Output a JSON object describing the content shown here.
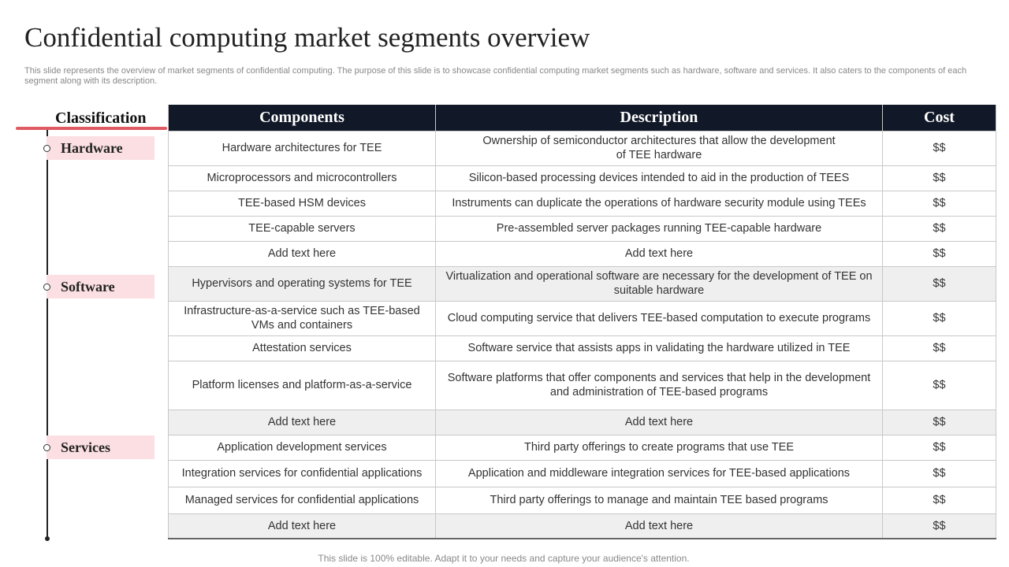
{
  "title": "Confidential computing market segments overview",
  "subtitle": "This slide represents the overview of market segments of confidential computing. The purpose of this slide is to showcase confidential computing market segments such as hardware, software and services. It also caters to the components of each segment along with its description.",
  "classification_header": "Classification",
  "categories": [
    {
      "label": "Hardware"
    },
    {
      "label": "Software"
    },
    {
      "label": "Services"
    }
  ],
  "table": {
    "headers": [
      "Components",
      "Description",
      "Cost"
    ],
    "rows": [
      {
        "component": "Hardware architectures for TEE",
        "description": "Ownership of semiconductor architectures that allow the development\nof TEE hardware",
        "cost": "$$"
      },
      {
        "component": "Microprocessors and microcontrollers",
        "description": "Silicon-based processing devices intended to aid in the production of TEES",
        "cost": "$$"
      },
      {
        "component": "TEE-based HSM devices",
        "description": "Instruments can duplicate the operations of hardware security module using TEEs",
        "cost": "$$"
      },
      {
        "component": "TEE-capable servers",
        "description": "Pre-assembled server packages running TEE-capable hardware",
        "cost": "$$"
      },
      {
        "component": "Add text here",
        "description": "Add text here",
        "cost": "$$"
      },
      {
        "component": "Hypervisors and operating systems for TEE",
        "description": "Virtualization and operational software are necessary for the development of TEE on suitable hardware",
        "cost": "$$"
      },
      {
        "component": "Infrastructure-as-a-service such as TEE-based VMs and containers",
        "description": "Cloud computing service that delivers TEE-based computation to execute programs",
        "cost": "$$"
      },
      {
        "component": "Attestation services",
        "description": "Software service that assists apps in validating the hardware utilized in TEE",
        "cost": "$$"
      },
      {
        "component": "Platform licenses and platform-as-a-service",
        "description": "Software platforms that offer components and services that help in the development and administration of TEE-based programs",
        "cost": "$$"
      },
      {
        "component": "Add text here",
        "description": "Add text here",
        "cost": "$$"
      },
      {
        "component": "Application development services",
        "description": "Third party offerings to create programs that use TEE",
        "cost": "$$"
      },
      {
        "component": "Integration services for confidential applications",
        "description": "Application and middleware integration services for  TEE-based applications",
        "cost": "$$"
      },
      {
        "component": "Managed services for confidential applications",
        "description": "Third party offerings to manage and maintain TEE based programs",
        "cost": "$$"
      },
      {
        "component": "Add text here",
        "description": "Add text here",
        "cost": "$$"
      }
    ]
  },
  "footer": "This slide is 100% editable. Adapt it to your needs and capture your audience's attention."
}
